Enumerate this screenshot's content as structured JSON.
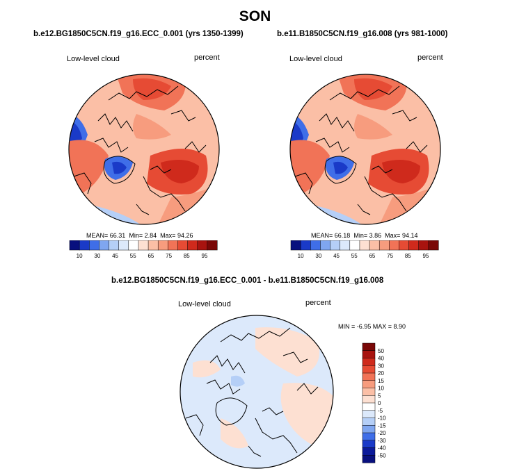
{
  "season_title": "SON",
  "panels": [
    {
      "case_title": "b.e12.BG1850C5CN.f19_g16.ECC_0.001 (yrs 1350-1399)",
      "variable": "Low-level cloud",
      "units": "percent",
      "stats": {
        "mean_label": "MEAN=",
        "mean": "66.31",
        "min_label": "Min=",
        "min": "2.84",
        "max_label": "Max=",
        "max": "94.26"
      }
    },
    {
      "case_title": "b.e11.B1850C5CN.f19_g16.008 (yrs 981-1000)",
      "variable": "Low-level cloud",
      "units": "percent",
      "stats": {
        "mean_label": "MEAN=",
        "mean": "66.18",
        "min_label": "Min=",
        "min": "3.86",
        "max_label": "Max=",
        "max": "94.14"
      }
    }
  ],
  "diff_panel": {
    "case_title": "b.e12.BG1850C5CN.f19_g16.ECC_0.001 - b.e11.B1850C5CN.f19_g16.008",
    "variable": "Low-level cloud",
    "units": "percent",
    "stats_text": "MIN =  -6.95 MAX =   8.90"
  },
  "abs_colorbar": {
    "labels": [
      "10",
      "30",
      "45",
      "55",
      "65",
      "75",
      "85",
      "95"
    ],
    "colors": [
      "#08107e",
      "#1a3ac8",
      "#3f6ee8",
      "#7fa6f0",
      "#b5cff7",
      "#dce9fb",
      "#ffffff",
      "#fde0d2",
      "#fbbfa6",
      "#f79c7e",
      "#f17357",
      "#e64b34",
      "#cf2a1c",
      "#a8130f",
      "#7a0807"
    ]
  },
  "diff_colorbar": {
    "labels": [
      "50",
      "40",
      "30",
      "20",
      "15",
      "10",
      "5",
      "0",
      "-5",
      "-10",
      "-15",
      "-20",
      "-30",
      "-40",
      "-50"
    ],
    "colors": [
      "#7a0807",
      "#a8130f",
      "#cf2a1c",
      "#e64b34",
      "#f17357",
      "#f79c7e",
      "#fbbfa6",
      "#fde0d2",
      "#ffffff",
      "#dce9fb",
      "#b5cff7",
      "#7fa6f0",
      "#3f6ee8",
      "#1a3ac8",
      "#0b1a9a",
      "#08107e"
    ]
  }
}
